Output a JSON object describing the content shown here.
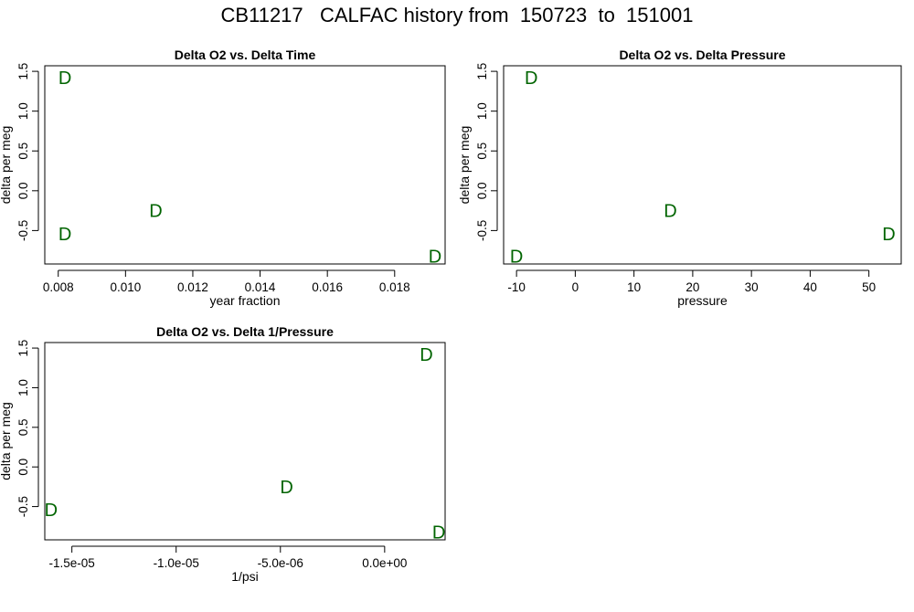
{
  "page_title": "CB11217   CALFAC history from  150723  to  151001",
  "colors": {
    "point": "#006400",
    "axis": "#000000",
    "background": "#ffffff"
  },
  "chart_data": [
    {
      "type": "scatter",
      "title": "Delta O2 vs. Delta Time",
      "xlabel": "year fraction",
      "ylabel": "delta per meg",
      "marker": "D",
      "xlim": [
        0.0076,
        0.0195
      ],
      "ylim": [
        -0.92,
        1.57
      ],
      "xticks": [
        0.008,
        0.01,
        0.012,
        0.014,
        0.016,
        0.018
      ],
      "xtick_labels": [
        "0.008",
        "0.010",
        "0.012",
        "0.014",
        "0.016",
        "0.018"
      ],
      "yticks": [
        -0.5,
        0.0,
        0.5,
        1.0,
        1.5
      ],
      "ytick_labels": [
        "-0.5",
        "0.0",
        "0.5",
        "1.0",
        "1.5"
      ],
      "x": [
        0.0082,
        0.0082,
        0.0109,
        0.0192
      ],
      "y": [
        1.42,
        -0.54,
        -0.25,
        -0.82
      ]
    },
    {
      "type": "scatter",
      "title": "Delta O2 vs. Delta Pressure",
      "xlabel": "pressure",
      "ylabel": "delta per meg",
      "marker": "D",
      "xlim": [
        -12.2,
        55.5
      ],
      "ylim": [
        -0.92,
        1.57
      ],
      "xticks": [
        -10,
        0,
        10,
        20,
        30,
        40,
        50
      ],
      "xtick_labels": [
        "-10",
        "0",
        "10",
        "20",
        "30",
        "40",
        "50"
      ],
      "yticks": [
        -0.5,
        0.0,
        0.5,
        1.0,
        1.5
      ],
      "ytick_labels": [
        "-0.5",
        "0.0",
        "0.5",
        "1.0",
        "1.5"
      ],
      "x": [
        -7.5,
        16.2,
        53.4,
        -10.0
      ],
      "y": [
        1.42,
        -0.25,
        -0.54,
        -0.82
      ]
    },
    {
      "type": "scatter",
      "title": "Delta O2 vs. Delta 1/Pressure",
      "xlabel": "1/psi",
      "ylabel": "delta per meg",
      "marker": "D",
      "xlim": [
        -1.63e-05,
        2.9e-06
      ],
      "ylim": [
        -0.92,
        1.57
      ],
      "xticks": [
        -1.5e-05,
        -1e-05,
        -5e-06,
        0.0
      ],
      "xtick_labels": [
        "-1.5e-05",
        "-1.0e-05",
        "-5.0e-06",
        "0.0e+00"
      ],
      "yticks": [
        -0.5,
        0.0,
        0.5,
        1.0,
        1.5
      ],
      "ytick_labels": [
        "-0.5",
        "0.0",
        "0.5",
        "1.0",
        "1.5"
      ],
      "x": [
        2e-06,
        -4.7e-06,
        -1.6e-05,
        2.6e-06
      ],
      "y": [
        1.42,
        -0.25,
        -0.54,
        -0.82
      ]
    }
  ]
}
